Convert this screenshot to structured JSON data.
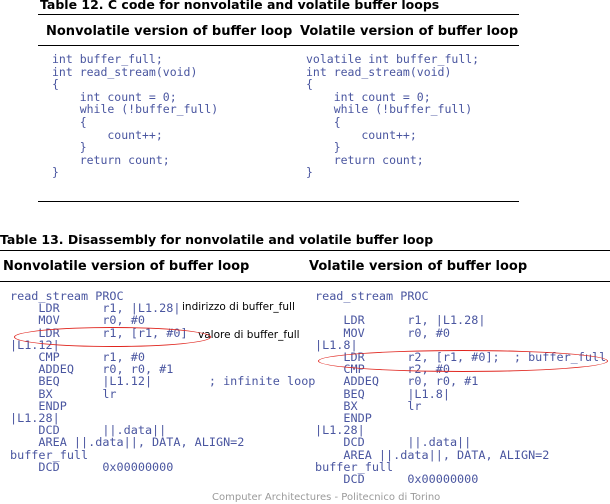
{
  "table12": {
    "caption": "Table 12. C code for nonvolatile and volatile buffer loops",
    "col_nonvolatile": "Nonvolatile version of buffer loop",
    "col_volatile": "Volatile version of buffer loop",
    "code_nonvolatile": "int buffer_full;\nint read_stream(void)\n{\n    int count = 0;\n    while (!buffer_full)\n    {\n        count++;\n    }\n    return count;\n}",
    "code_volatile": "volatile int buffer_full;\nint read_stream(void)\n{\n    int count = 0;\n    while (!buffer_full)\n    {\n        count++;\n    }\n    return count;\n}"
  },
  "table13": {
    "caption": "Table 13. Disassembly for nonvolatile and volatile buffer loop",
    "col_nonvolatile": "Nonvolatile version of buffer loop",
    "col_volatile": "Volatile version of buffer loop",
    "asm_nonvolatile": "read_stream PROC\n    LDR      r1, |L1.28|\n    MOV      r0, #0\n    LDR      r1, [r1, #0]\n|L1.12|\n    CMP      r1, #0\n    ADDEQ    r0, r0, #1\n    BEQ      |L1.12|        ; infinite loop\n    BX       lr\n    ENDP\n|L1.28|\n    DCD      ||.data||\n    AREA ||.data||, DATA, ALIGN=2\nbuffer_full\n    DCD      0x00000000",
    "asm_volatile": "read_stream PROC\n\n    LDR      r1, |L1.28|\n    MOV      r0, #0\n|L1.8|\n    LDR      r2, [r1, #0];  ; buffer_full\n    CMP      r2, #0\n    ADDEQ    r0, r0, #1\n    BEQ      |L1.8|\n    BX       lr\n    ENDP\n|L1.28|\n    DCD      ||.data||\n    AREA ||.data||, DATA, ALIGN=2\nbuffer_full\n    DCD      0x00000000"
  },
  "annotations": {
    "address_note": "indirizzo di buffer_full",
    "value_note": "valore di buffer_full"
  },
  "footer": "Computer Architectures - Politecnico di Torino",
  "colors": {
    "code_blue": "#4a56a0",
    "highlight_red": "#e0261f",
    "footer_gray": "#9a9a9a"
  }
}
